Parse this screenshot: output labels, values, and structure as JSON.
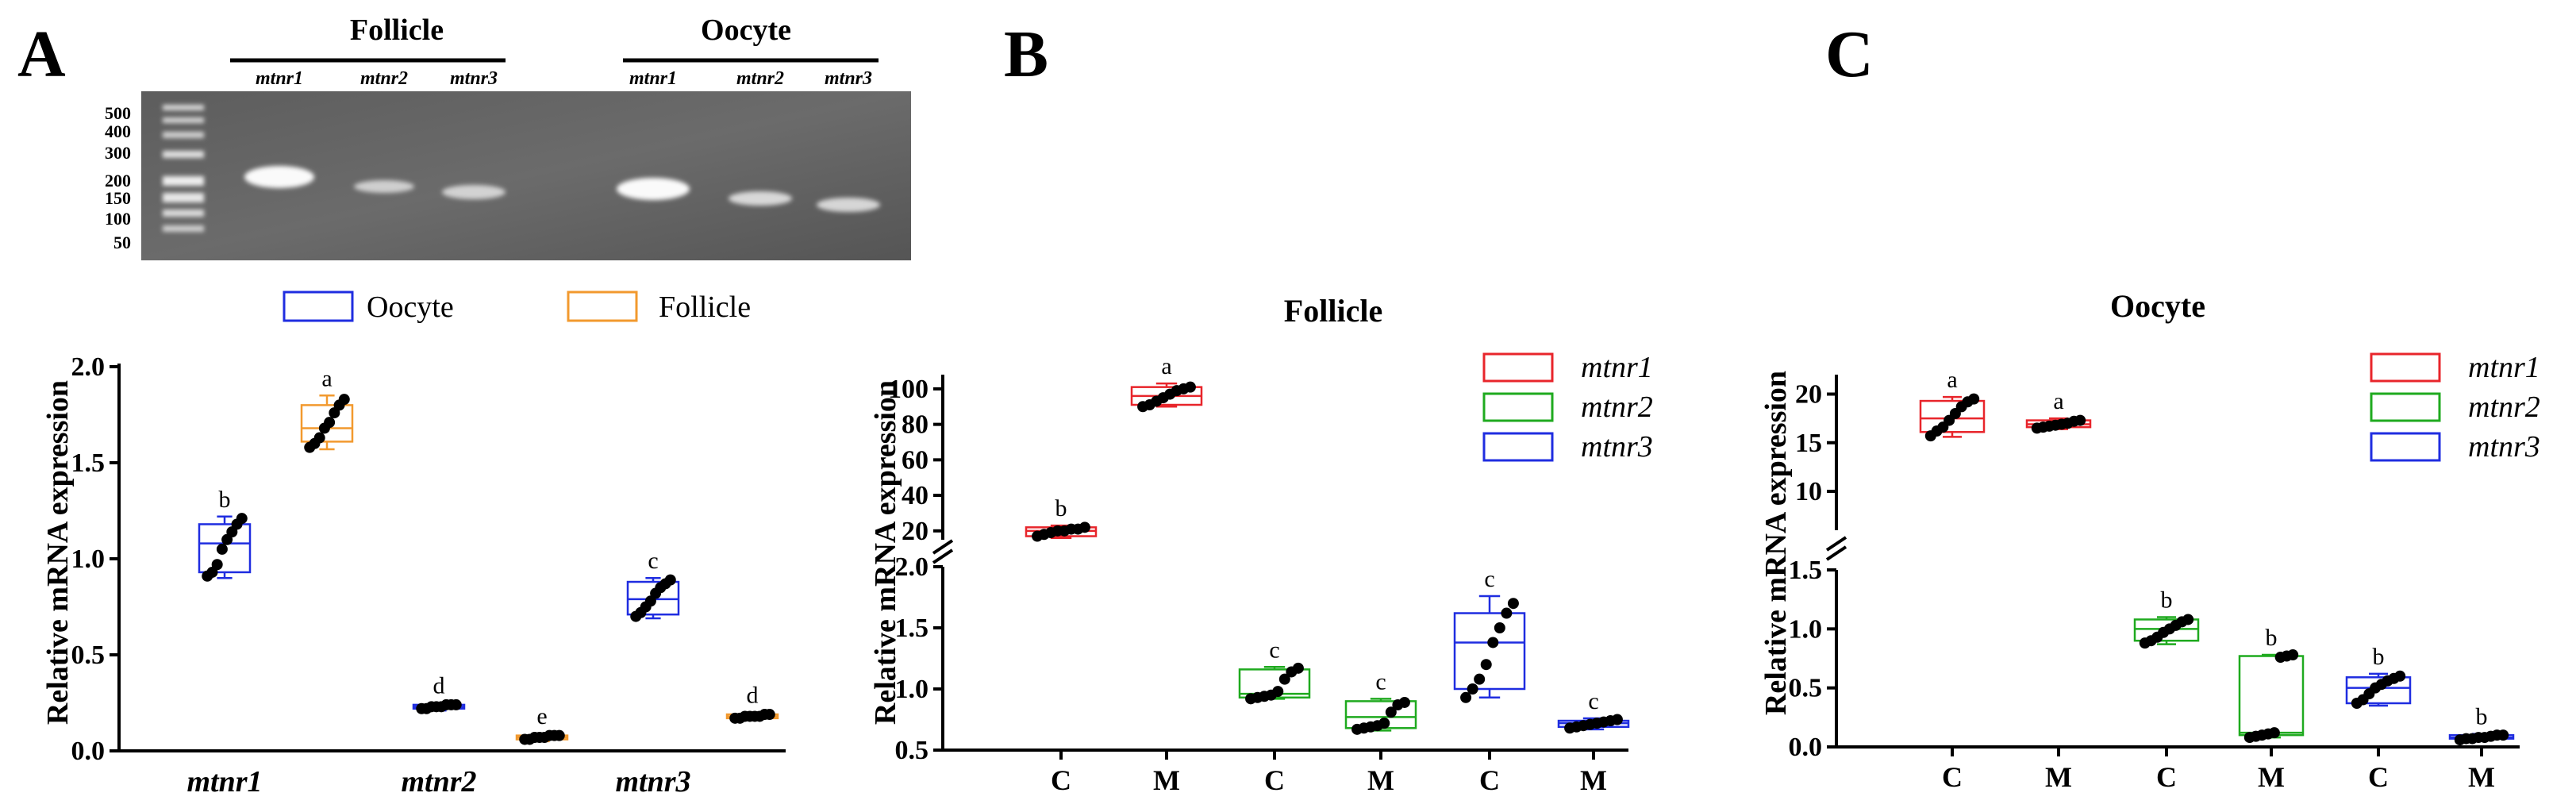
{
  "panels": {
    "a": "A",
    "b": "B",
    "c": "C"
  },
  "gel": {
    "group1": "Follicle",
    "group2": "Oocyte",
    "lanes1": [
      "mtnr1",
      "mtnr2",
      "mtnr3"
    ],
    "lanes2": [
      "mtnr1",
      "mtnr2",
      "mtnr3"
    ],
    "ladder": [
      "500",
      "400",
      "300",
      "200",
      "150",
      "100",
      "50"
    ]
  },
  "colors": {
    "red": "#e8252b",
    "green": "#1faa1f",
    "blue": "#1f2de0",
    "orange": "#f2992e"
  },
  "chart_data": [
    {
      "id": "A",
      "type": "box",
      "title": "",
      "ylabel": "Relative mRNA expression",
      "ylim": [
        0,
        2.0
      ],
      "yticks": [
        "0.0",
        "0.5",
        "1.0",
        "1.5",
        "2.0"
      ],
      "categories": [
        "mtnr1",
        "mtnr2",
        "mtnr3"
      ],
      "legend": [
        "Oocyte",
        "Follicle"
      ],
      "boxes": [
        {
          "group": "mtnr1",
          "series": "Oocyte",
          "color": "blue",
          "q1": 0.93,
          "median": 1.08,
          "q3": 1.18,
          "min": 0.9,
          "max": 1.22,
          "points": [
            0.91,
            0.93,
            0.97,
            1.05,
            1.1,
            1.14,
            1.18,
            1.21
          ],
          "letter": "b"
        },
        {
          "group": "mtnr1",
          "series": "Follicle",
          "color": "orange",
          "q1": 1.61,
          "median": 1.68,
          "q3": 1.8,
          "min": 1.57,
          "max": 1.85,
          "points": [
            1.58,
            1.6,
            1.63,
            1.68,
            1.71,
            1.76,
            1.8,
            1.83
          ],
          "letter": "a"
        },
        {
          "group": "mtnr2",
          "series": "Oocyte",
          "color": "blue",
          "q1": 0.22,
          "median": 0.23,
          "q3": 0.24,
          "min": 0.21,
          "max": 0.25,
          "points": [
            0.22,
            0.22,
            0.23,
            0.23,
            0.23,
            0.24,
            0.24,
            0.24
          ],
          "letter": "d"
        },
        {
          "group": "mtnr2",
          "series": "Follicle",
          "color": "orange",
          "q1": 0.06,
          "median": 0.07,
          "q3": 0.08,
          "min": 0.05,
          "max": 0.09,
          "points": [
            0.06,
            0.06,
            0.07,
            0.07,
            0.07,
            0.08,
            0.08,
            0.08
          ],
          "letter": "e"
        },
        {
          "group": "mtnr3",
          "series": "Oocyte",
          "color": "blue",
          "q1": 0.71,
          "median": 0.79,
          "q3": 0.88,
          "min": 0.69,
          "max": 0.9,
          "points": [
            0.7,
            0.72,
            0.75,
            0.78,
            0.82,
            0.85,
            0.87,
            0.89
          ],
          "letter": "c"
        },
        {
          "group": "mtnr3",
          "series": "Follicle",
          "color": "orange",
          "q1": 0.17,
          "median": 0.18,
          "q3": 0.19,
          "min": 0.16,
          "max": 0.2,
          "points": [
            0.17,
            0.17,
            0.18,
            0.18,
            0.18,
            0.18,
            0.19,
            0.19
          ],
          "letter": "d"
        }
      ]
    },
    {
      "id": "B",
      "type": "box",
      "title": "Follicle",
      "ylabel": "Relative mRNA expression",
      "broken_axis": {
        "lower": [
          0.5,
          2.0
        ],
        "upper": [
          15,
          108
        ]
      },
      "yticks_lower": [
        "0.5",
        "1.0",
        "1.5",
        "2.0"
      ],
      "yticks_upper": [
        "20",
        "40",
        "60",
        "80",
        "100"
      ],
      "categories": [
        "C",
        "M",
        "C",
        "M",
        "C",
        "M"
      ],
      "legend": [
        "mtnr1",
        "mtnr2",
        "mtnr3"
      ],
      "boxes": [
        {
          "color": "red",
          "q1": 17,
          "median": 20,
          "q3": 22,
          "min": 16,
          "max": 23,
          "points": [
            17,
            18,
            19,
            20,
            20,
            21,
            21,
            22
          ],
          "letter": "b"
        },
        {
          "color": "red",
          "q1": 91,
          "median": 96,
          "q3": 101,
          "min": 90,
          "max": 103,
          "points": [
            90,
            91,
            93,
            95,
            97,
            99,
            100,
            101
          ],
          "letter": "a"
        },
        {
          "color": "green",
          "q1": 0.93,
          "median": 0.96,
          "q3": 1.16,
          "min": 0.92,
          "max": 1.18,
          "points": [
            0.92,
            0.93,
            0.94,
            0.95,
            0.98,
            1.08,
            1.14,
            1.17
          ],
          "letter": "c"
        },
        {
          "color": "green",
          "q1": 0.68,
          "median": 0.77,
          "q3": 0.9,
          "min": 0.66,
          "max": 0.92,
          "points": [
            0.67,
            0.68,
            0.69,
            0.7,
            0.72,
            0.81,
            0.87,
            0.89
          ],
          "letter": "c"
        },
        {
          "color": "blue",
          "q1": 1.0,
          "median": 1.38,
          "q3": 1.62,
          "min": 0.93,
          "max": 1.76,
          "points": [
            0.93,
            1.0,
            1.08,
            1.2,
            1.38,
            1.5,
            1.62,
            1.7
          ],
          "letter": "c"
        },
        {
          "color": "blue",
          "q1": 0.69,
          "median": 0.72,
          "q3": 0.74,
          "min": 0.67,
          "max": 0.76,
          "points": [
            0.68,
            0.69,
            0.7,
            0.71,
            0.72,
            0.73,
            0.74,
            0.75
          ],
          "letter": "c"
        }
      ]
    },
    {
      "id": "C",
      "type": "box",
      "title": "Oocyte",
      "ylabel": "Relative mRNA expression",
      "broken_axis": {
        "lower": [
          0,
          1.5
        ],
        "upper": [
          6,
          22
        ]
      },
      "yticks_lower": [
        "0.0",
        "0.5",
        "1.0",
        "1.5"
      ],
      "yticks_upper": [
        "10",
        "15",
        "20"
      ],
      "categories": [
        "C",
        "M",
        "C",
        "M",
        "C",
        "M"
      ],
      "legend": [
        "mtnr1",
        "mtnr2",
        "mtnr3"
      ],
      "boxes": [
        {
          "color": "red",
          "q1": 16.1,
          "median": 17.5,
          "q3": 19.3,
          "min": 15.6,
          "max": 19.7,
          "points": [
            15.7,
            16.2,
            16.6,
            17.3,
            18.0,
            18.7,
            19.2,
            19.5
          ],
          "letter": "a"
        },
        {
          "color": "red",
          "q1": 16.6,
          "median": 16.9,
          "q3": 17.3,
          "min": 16.4,
          "max": 17.5,
          "points": [
            16.5,
            16.6,
            16.7,
            16.8,
            16.9,
            17.0,
            17.2,
            17.3
          ],
          "letter": "a"
        },
        {
          "color": "green",
          "q1": 0.9,
          "median": 1.0,
          "q3": 1.08,
          "min": 0.87,
          "max": 1.1,
          "points": [
            0.88,
            0.9,
            0.93,
            0.97,
            1.0,
            1.03,
            1.06,
            1.08
          ],
          "letter": "b"
        },
        {
          "color": "green",
          "q1": 0.1,
          "median": 0.12,
          "q3": 0.77,
          "min": 0.08,
          "max": 0.78,
          "points": [
            0.08,
            0.09,
            0.1,
            0.11,
            0.12,
            0.76,
            0.77,
            0.78
          ],
          "letter": "b"
        },
        {
          "color": "blue",
          "q1": 0.37,
          "median": 0.5,
          "q3": 0.59,
          "min": 0.35,
          "max": 0.62,
          "points": [
            0.37,
            0.4,
            0.45,
            0.5,
            0.53,
            0.56,
            0.58,
            0.6
          ],
          "letter": "b"
        },
        {
          "color": "blue",
          "q1": 0.07,
          "median": 0.08,
          "q3": 0.1,
          "min": 0.06,
          "max": 0.11,
          "points": [
            0.06,
            0.07,
            0.07,
            0.08,
            0.08,
            0.09,
            0.1,
            0.1
          ],
          "letter": "b"
        }
      ]
    }
  ]
}
